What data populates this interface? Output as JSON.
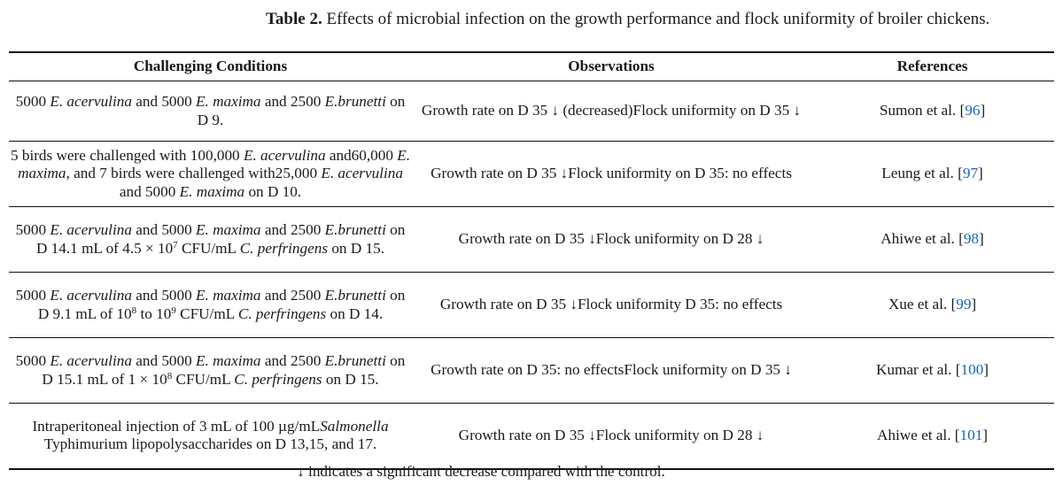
{
  "caption": {
    "label": "Table 2.",
    "text": "Effects of microbial infection on the growth performance and flock uniformity of broiler chickens."
  },
  "headers": [
    "Challenging Conditions",
    "Observations",
    "References"
  ],
  "rows": [
    {
      "conditions": [
        "5000 E. acervulina and 5000 E. maxima and 2500 E.",
        "brunetti on D 9."
      ],
      "observations": [
        "Growth rate on D 35 ↓ (decreased)",
        "Flock uniformity on D 35 ↓"
      ],
      "ref_author": "Sumon et al. [",
      "ref_num": "96",
      "ref_close": "]"
    },
    {
      "conditions": [
        "5 birds were challenged with 100,000 E. acervulina and",
        "60,000 E. maxima, and 7 birds were challenged with",
        "25,000 E. acervulina and 5000 E. maxima on D 10."
      ],
      "observations": [
        "Growth rate on D 35 ↓",
        "Flock uniformity on D 35: no effects"
      ],
      "ref_author": "Leung et al. [",
      "ref_num": "97",
      "ref_close": "]"
    },
    {
      "conditions": [
        "5000 E. acervulina and 5000 E. maxima and 2500 E.",
        "brunetti on D 14.",
        "1 mL of 4.5 × 10⁷ CFU/mL C. perfringens on D 15."
      ],
      "observations": [
        "Growth rate on D 35 ↓",
        "Flock uniformity on D 28 ↓"
      ],
      "ref_author": "Ahiwe et al. [",
      "ref_num": "98",
      "ref_close": "]"
    },
    {
      "conditions": [
        "5000 E. acervulina and 5000 E. maxima and 2500 E.",
        "brunetti on D 9.",
        "1 mL of 10⁸ to 10⁹ CFU/mL C. perfringens on D 14."
      ],
      "observations": [
        "Growth rate on D 35 ↓",
        "Flock uniformity D 35: no effects"
      ],
      "ref_author": "Xue et al. [",
      "ref_num": "99",
      "ref_close": "]"
    },
    {
      "conditions": [
        "5000 E. acervulina and 5000 E. maxima and 2500 E.",
        "brunetti on D 15.",
        "1 mL of 1 × 10⁸ CFU/mL C. perfringens on D 15."
      ],
      "observations": [
        "Growth rate on D 35: no effects",
        "Flock uniformity on D 35 ↓"
      ],
      "ref_author": "Kumar et al. [",
      "ref_num": "100",
      "ref_close": "]"
    },
    {
      "conditions": [
        "Intraperitoneal injection of 3 mL of 100 µg/mL",
        "Salmonella Typhimurium lipopolysaccharides on D 13,",
        "15, and 17."
      ],
      "observations": [
        "Growth rate on D 35 ↓",
        "Flock uniformity on D 28 ↓"
      ],
      "ref_author": "Ahiwe et al. [",
      "ref_num": "101",
      "ref_close": "]"
    }
  ],
  "footnote": "↓ indicates a significant decrease compared with the control."
}
